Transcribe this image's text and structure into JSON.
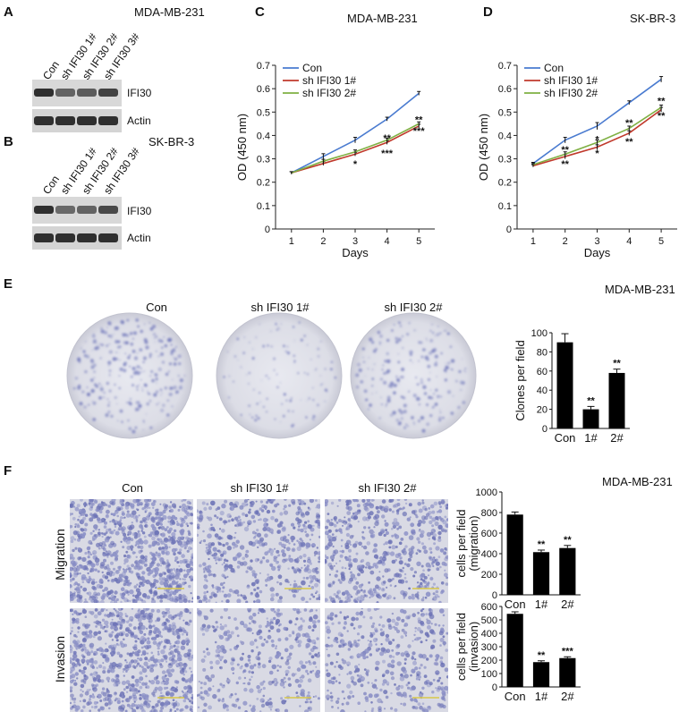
{
  "panels": {
    "A": {
      "letter": "A",
      "cell_line": "MDA-MB-231",
      "lanes": [
        "Con",
        "sh IFI30 1#",
        "sh IFI30 2#",
        "sh IFI30 3#"
      ],
      "bands": [
        "IFI30",
        "Actin"
      ],
      "band_intensity": {
        "IFI30": [
          0.95,
          0.55,
          0.6,
          0.8
        ],
        "Actin": [
          0.95,
          0.95,
          0.95,
          0.95
        ]
      }
    },
    "B": {
      "letter": "B",
      "cell_line": "SK-BR-3",
      "lanes": [
        "Con",
        "sh IFI30 1#",
        "sh IFI30 2#",
        "sh IFI30 3#"
      ],
      "bands": [
        "IFI30",
        "Actin"
      ],
      "band_intensity": {
        "IFI30": [
          0.95,
          0.5,
          0.55,
          0.75
        ],
        "Actin": [
          0.95,
          0.95,
          0.95,
          0.95
        ]
      }
    },
    "E": {
      "letter": "E",
      "cell_line": "MDA-MB-231",
      "dish_labels": [
        "Con",
        "sh IFI30 1#",
        "sh IFI30 2#"
      ]
    },
    "F": {
      "letter": "F",
      "cell_line": "MDA-MB-231",
      "column_labels": [
        "Con",
        "sh IFI30 1#",
        "sh IFI30 2#"
      ],
      "row_labels": [
        "Migration",
        "Invasion"
      ]
    }
  },
  "colors": {
    "con": "#4a7bd0",
    "sh1": "#c0392b",
    "sh2": "#7fb043",
    "bar": "#000000",
    "stain": "#7b82c4"
  },
  "chart_data": [
    {
      "id": "C",
      "letter": "C",
      "type": "line",
      "title": "MDA-MB-231",
      "xlabel": "Days",
      "ylabel": "OD  (450 nm)",
      "x": [
        1,
        2,
        3,
        4,
        5
      ],
      "xlim": [
        0.5,
        5.5
      ],
      "ylim": [
        0,
        0.7
      ],
      "yticks": [
        "0",
        "0.1",
        "0.2",
        "0.3",
        "0.4",
        "0.5",
        "0.6",
        "0.7"
      ],
      "xticks": [
        "1",
        "2",
        "3",
        "4",
        "5"
      ],
      "legend_position": "top-left",
      "series": [
        {
          "name": "Con",
          "values": [
            0.24,
            0.31,
            0.38,
            0.47,
            0.58
          ],
          "err": [
            0.005,
            0.012,
            0.012,
            0.008,
            0.008
          ]
        },
        {
          "name": "sh IFI30 1#",
          "values": [
            0.24,
            0.28,
            0.32,
            0.37,
            0.44
          ],
          "err": [
            0.005,
            0.008,
            0.008,
            0.008,
            0.008
          ]
        },
        {
          "name": "sh IFI30 2#",
          "values": [
            0.24,
            0.29,
            0.33,
            0.38,
            0.45
          ],
          "err": [
            0.005,
            0.008,
            0.008,
            0.008,
            0.008
          ]
        }
      ],
      "annotations": [
        {
          "x": 3,
          "y": 0.28,
          "text": "*",
          "series": 1
        },
        {
          "x": 4,
          "y": 0.325,
          "text": "***",
          "series": 1
        },
        {
          "x": 5,
          "y": 0.42,
          "text": "***",
          "series": 1
        },
        {
          "x": 4,
          "y": 0.39,
          "text": "**",
          "series": 2
        },
        {
          "x": 5,
          "y": 0.468,
          "text": "**",
          "series": 2
        }
      ]
    },
    {
      "id": "D",
      "letter": "D",
      "type": "line",
      "title": "SK-BR-3",
      "xlabel": "Days",
      "ylabel": "OD  (450 nm)",
      "x": [
        1,
        2,
        3,
        4,
        5
      ],
      "xlim": [
        0.5,
        5.5
      ],
      "ylim": [
        0,
        0.7
      ],
      "yticks": [
        "0",
        "0.1",
        "0.2",
        "0.3",
        "0.4",
        "0.5",
        "0.6",
        "0.7"
      ],
      "xticks": [
        "1",
        "2",
        "3",
        "4",
        "5"
      ],
      "legend_position": "top-left",
      "series": [
        {
          "name": "Con",
          "values": [
            0.28,
            0.38,
            0.44,
            0.54,
            0.64
          ],
          "err": [
            0.005,
            0.012,
            0.015,
            0.008,
            0.012
          ]
        },
        {
          "name": "sh IFI30 1#",
          "values": [
            0.27,
            0.31,
            0.35,
            0.41,
            0.51
          ],
          "err": [
            0.005,
            0.01,
            0.01,
            0.01,
            0.01
          ]
        },
        {
          "name": "sh IFI30 2#",
          "values": [
            0.275,
            0.32,
            0.37,
            0.43,
            0.52
          ],
          "err": [
            0.005,
            0.01,
            0.01,
            0.01,
            0.01
          ]
        }
      ],
      "annotations": [
        {
          "x": 2,
          "y": 0.28,
          "text": "**",
          "series": 1
        },
        {
          "x": 3,
          "y": 0.325,
          "text": "*",
          "series": 1
        },
        {
          "x": 4,
          "y": 0.375,
          "text": "**",
          "series": 1
        },
        {
          "x": 5,
          "y": 0.485,
          "text": "**",
          "series": 1
        },
        {
          "x": 2,
          "y": 0.34,
          "text": "**",
          "series": 2
        },
        {
          "x": 3,
          "y": 0.385,
          "text": "*",
          "series": 2
        },
        {
          "x": 4,
          "y": 0.455,
          "text": "**",
          "series": 2
        },
        {
          "x": 5,
          "y": 0.548,
          "text": "**",
          "series": 2
        }
      ]
    },
    {
      "id": "E-bar",
      "type": "bar",
      "ylabel": "Clones per field",
      "categories": [
        "Con",
        "1#",
        "2#"
      ],
      "values": [
        90,
        20,
        58
      ],
      "err": [
        9,
        3,
        4
      ],
      "ylim": [
        0,
        100
      ],
      "yticks": [
        "0",
        "20",
        "40",
        "60",
        "80",
        "100"
      ],
      "annotations": [
        "",
        "**",
        "**"
      ]
    },
    {
      "id": "F-migration",
      "type": "bar",
      "ylabel": "cells per field\n(migration)",
      "categories": [
        "Con",
        "1#",
        "2#"
      ],
      "values": [
        780,
        415,
        455
      ],
      "err": [
        25,
        20,
        25
      ],
      "ylim": [
        0,
        1000
      ],
      "yticks": [
        "0",
        "200",
        "400",
        "600",
        "800",
        "1000"
      ],
      "annotations": [
        "",
        "**",
        "**"
      ]
    },
    {
      "id": "F-invasion",
      "type": "bar",
      "ylabel": "cells per field\n(invasion)",
      "categories": [
        "Con",
        "1#",
        "2#"
      ],
      "values": [
        545,
        185,
        215
      ],
      "err": [
        15,
        10,
        10
      ],
      "ylim": [
        0,
        600
      ],
      "yticks": [
        "0",
        "100",
        "200",
        "300",
        "400",
        "500",
        "600"
      ],
      "annotations": [
        "",
        "**",
        "***"
      ]
    }
  ]
}
